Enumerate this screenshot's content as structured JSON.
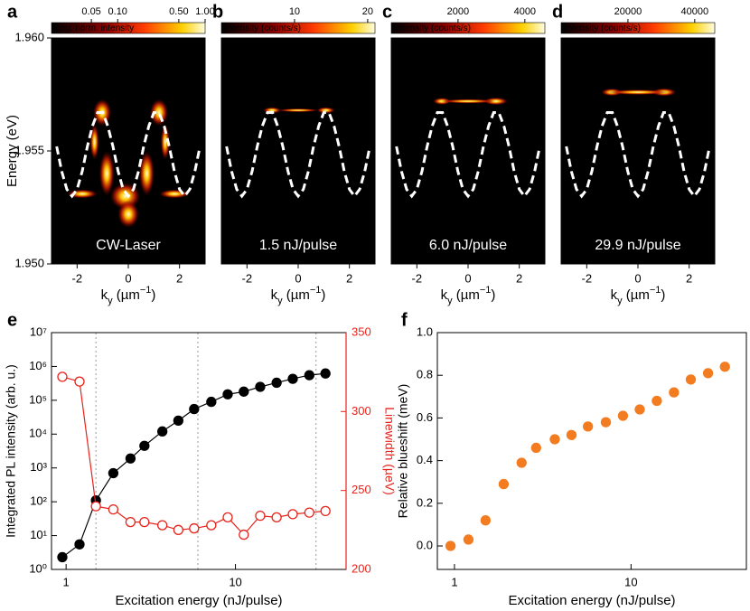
{
  "chart_data": [
    {
      "type": "heatmap",
      "label": "a",
      "title": "CW-Laser",
      "colorbar_label": "Log. norm. intensity",
      "clim": [
        0.0175,
        1
      ],
      "clog": true,
      "cticks": [
        0.05,
        {
          "value": 0.1,
          "label": "0.10"
        },
        {
          "value": 0.5,
          "label": "0.50"
        },
        {
          "value": 1,
          "label": "1.00"
        }
      ],
      "ylabel": "Energy (eV)",
      "xlabel_parts": [
        "k",
        "y",
        " (µm",
        "−1",
        ")"
      ],
      "xlim": [
        -3,
        3
      ],
      "xticks": [
        -2,
        0,
        2
      ],
      "ylim": [
        1.95,
        1.96
      ],
      "yticks": [
        {
          "value": 1.95,
          "label": "1.950"
        },
        1.955,
        {
          "value": 1.96,
          "label": "1.960"
        }
      ],
      "dispersion_x": [
        -2.8,
        -2.6,
        -2.4,
        -2.2,
        -2.0,
        -1.8,
        -1.6,
        -1.4,
        -1.2,
        -1.0,
        -0.8,
        -0.6,
        -0.4,
        -0.2,
        0,
        0.2,
        0.4,
        0.6,
        0.8,
        1.0,
        1.2,
        1.4,
        1.6,
        1.8,
        2.0,
        2.2,
        2.4,
        2.6,
        2.8
      ],
      "dispersion": [
        1.9552,
        1.9541,
        1.9533,
        1.953,
        1.9533,
        1.9541,
        1.9552,
        1.9561,
        1.9567,
        1.9567,
        1.9561,
        1.9552,
        1.9541,
        1.9533,
        1.953,
        1.9533,
        1.9541,
        1.9552,
        1.9561,
        1.9567,
        1.9567,
        1.9561,
        1.9552,
        1.9541,
        1.9533,
        1.953,
        1.9533,
        1.9541,
        1.9552
      ]
    },
    {
      "type": "heatmap",
      "label": "b",
      "title": "1.5 nJ/pulse",
      "colorbar_label": "Intensity (counts/s)",
      "clim": [
        0,
        21
      ],
      "clog": false,
      "cticks": [
        10,
        20
      ],
      "xlabel_parts": [
        "k",
        "y",
        " (µm",
        "−1",
        ")"
      ],
      "xlim": [
        -3,
        3
      ],
      "xticks": [
        -2,
        0,
        2
      ],
      "ylim": [
        1.95,
        1.96
      ],
      "dispersion_x": [
        -2.8,
        -2.6,
        -2.4,
        -2.2,
        -2.0,
        -1.8,
        -1.6,
        -1.4,
        -1.2,
        -1.0,
        -0.8,
        -0.6,
        -0.4,
        -0.2,
        0,
        0.2,
        0.4,
        0.6,
        0.8,
        1.0,
        1.2,
        1.4,
        1.6,
        1.8,
        2.0,
        2.2,
        2.4,
        2.6,
        2.8
      ],
      "dispersion": [
        1.9552,
        1.9541,
        1.9533,
        1.953,
        1.9533,
        1.9541,
        1.9552,
        1.9561,
        1.9567,
        1.9567,
        1.9561,
        1.9552,
        1.9541,
        1.9533,
        1.953,
        1.9533,
        1.9541,
        1.9552,
        1.9561,
        1.9567,
        1.9567,
        1.9561,
        1.9552,
        1.9541,
        1.9533,
        1.953,
        1.9533,
        1.9541,
        1.9552
      ]
    },
    {
      "type": "heatmap",
      "label": "c",
      "title": "6.0 nJ/pulse",
      "colorbar_label": "Intensity (counts/s)",
      "clim": [
        0,
        4600
      ],
      "clog": false,
      "cticks": [
        2000,
        4000
      ],
      "xlabel_parts": [
        "k",
        "y",
        " (µm",
        "−1",
        ")"
      ],
      "xlim": [
        -3,
        3
      ],
      "xticks": [
        -2,
        0,
        2
      ],
      "ylim": [
        1.95,
        1.96
      ],
      "dispersion_x": [
        -2.8,
        -2.6,
        -2.4,
        -2.2,
        -2.0,
        -1.8,
        -1.6,
        -1.4,
        -1.2,
        -1.0,
        -0.8,
        -0.6,
        -0.4,
        -0.2,
        0,
        0.2,
        0.4,
        0.6,
        0.8,
        1.0,
        1.2,
        1.4,
        1.6,
        1.8,
        2.0,
        2.2,
        2.4,
        2.6,
        2.8
      ],
      "dispersion": [
        1.9552,
        1.9541,
        1.9533,
        1.953,
        1.9533,
        1.9541,
        1.9552,
        1.9561,
        1.9567,
        1.9567,
        1.9561,
        1.9552,
        1.9541,
        1.9533,
        1.953,
        1.9533,
        1.9541,
        1.9552,
        1.9561,
        1.9567,
        1.9567,
        1.9561,
        1.9552,
        1.9541,
        1.9533,
        1.953,
        1.9533,
        1.9541,
        1.9552
      ]
    },
    {
      "type": "heatmap",
      "label": "d",
      "title": "29.9 nJ/pulse",
      "colorbar_label": "Intensity (counts/s)",
      "clim": [
        0,
        46000
      ],
      "clog": false,
      "cticks": [
        20000,
        40000
      ],
      "xlabel_parts": [
        "k",
        "y",
        " (µm",
        "−1",
        ")"
      ],
      "xlim": [
        -3,
        3
      ],
      "xticks": [
        -2,
        0,
        2
      ],
      "ylim": [
        1.95,
        1.96
      ],
      "dispersion_x": [
        -2.8,
        -2.6,
        -2.4,
        -2.2,
        -2.0,
        -1.8,
        -1.6,
        -1.4,
        -1.2,
        -1.0,
        -0.8,
        -0.6,
        -0.4,
        -0.2,
        0,
        0.2,
        0.4,
        0.6,
        0.8,
        1.0,
        1.2,
        1.4,
        1.6,
        1.8,
        2.0,
        2.2,
        2.4,
        2.6,
        2.8
      ],
      "dispersion": [
        1.9552,
        1.9541,
        1.9533,
        1.953,
        1.9533,
        1.9541,
        1.9552,
        1.9561,
        1.9567,
        1.9567,
        1.9561,
        1.9552,
        1.9541,
        1.9533,
        1.953,
        1.9533,
        1.9541,
        1.9552,
        1.9561,
        1.9567,
        1.9567,
        1.9561,
        1.9552,
        1.9541,
        1.9533,
        1.953,
        1.9533,
        1.9541,
        1.9552
      ]
    },
    {
      "type": "line",
      "label": "e",
      "xlabel": "Excitation energy (nJ/pulse)",
      "ylabel": "Integrated PL intensity (arb. u.)",
      "y2label": "Linewidth (µeV)",
      "xlog": true,
      "ylog": true,
      "xlim": [
        0.82,
        45
      ],
      "xticks": [
        1,
        10
      ],
      "ylim": [
        1,
        10000000
      ],
      "yticks": [
        {
          "value": 1,
          "label": "10⁰"
        },
        {
          "value": 10,
          "label": "10¹"
        },
        {
          "value": 100,
          "label": "10²"
        },
        {
          "value": 1000,
          "label": "10³"
        },
        {
          "value": 10000,
          "label": "10⁴"
        },
        {
          "value": 100000,
          "label": "10⁵"
        },
        {
          "value": 1000000,
          "label": "10⁶"
        },
        {
          "value": 10000000,
          "label": "10⁷"
        }
      ],
      "y2lim": [
        200,
        350
      ],
      "y2ticks": [
        200,
        250,
        300,
        350
      ],
      "y2color": "#e8231b",
      "vlines": [
        1.5,
        6.0,
        29.9
      ],
      "x": [
        0.95,
        1.2,
        1.5,
        1.9,
        2.4,
        2.9,
        3.7,
        4.6,
        5.7,
        7.2,
        9.0,
        11.2,
        14.0,
        17.5,
        21.8,
        27.3,
        34.0
      ],
      "series": [
        {
          "color": "#000000",
          "marker": "filled",
          "values": [
            2.3,
            5.5,
            110,
            700,
            1900,
            4500,
            12000,
            25000,
            55000,
            90000,
            150000,
            180000,
            250000,
            330000,
            430000,
            550000,
            620000
          ]
        },
        {
          "color": "#e8231b",
          "marker": "open",
          "axis": "y2",
          "values": [
            322,
            319,
            240,
            238,
            230,
            230,
            228,
            225,
            226,
            228,
            233,
            222,
            234,
            233,
            235,
            236,
            237
          ]
        }
      ]
    },
    {
      "type": "scatter",
      "label": "f",
      "xlabel": "Excitation energy (nJ/pulse)",
      "ylabel": "Relative blueshift (meV)",
      "xlog": true,
      "xlim": [
        0.8,
        45
      ],
      "xticks": [
        1,
        10
      ],
      "ylim": [
        -0.11,
        1.0
      ],
      "yticks": [
        {
          "value": 0,
          "label": "0.0"
        },
        0.2,
        0.4,
        0.6,
        0.8,
        {
          "value": 1,
          "label": "1.0"
        }
      ],
      "x": [
        0.95,
        1.2,
        1.5,
        1.9,
        2.4,
        2.9,
        3.7,
        4.6,
        5.7,
        7.2,
        9.0,
        11.2,
        14.0,
        17.5,
        21.8,
        27.3,
        34.0
      ],
      "series": [
        {
          "color": "#f47c20",
          "marker": "filled",
          "values": [
            0,
            0.03,
            0.12,
            0.29,
            0.39,
            0.46,
            0.5,
            0.52,
            0.56,
            0.58,
            0.61,
            0.64,
            0.68,
            0.72,
            0.78,
            0.81,
            0.84
          ]
        }
      ]
    }
  ]
}
